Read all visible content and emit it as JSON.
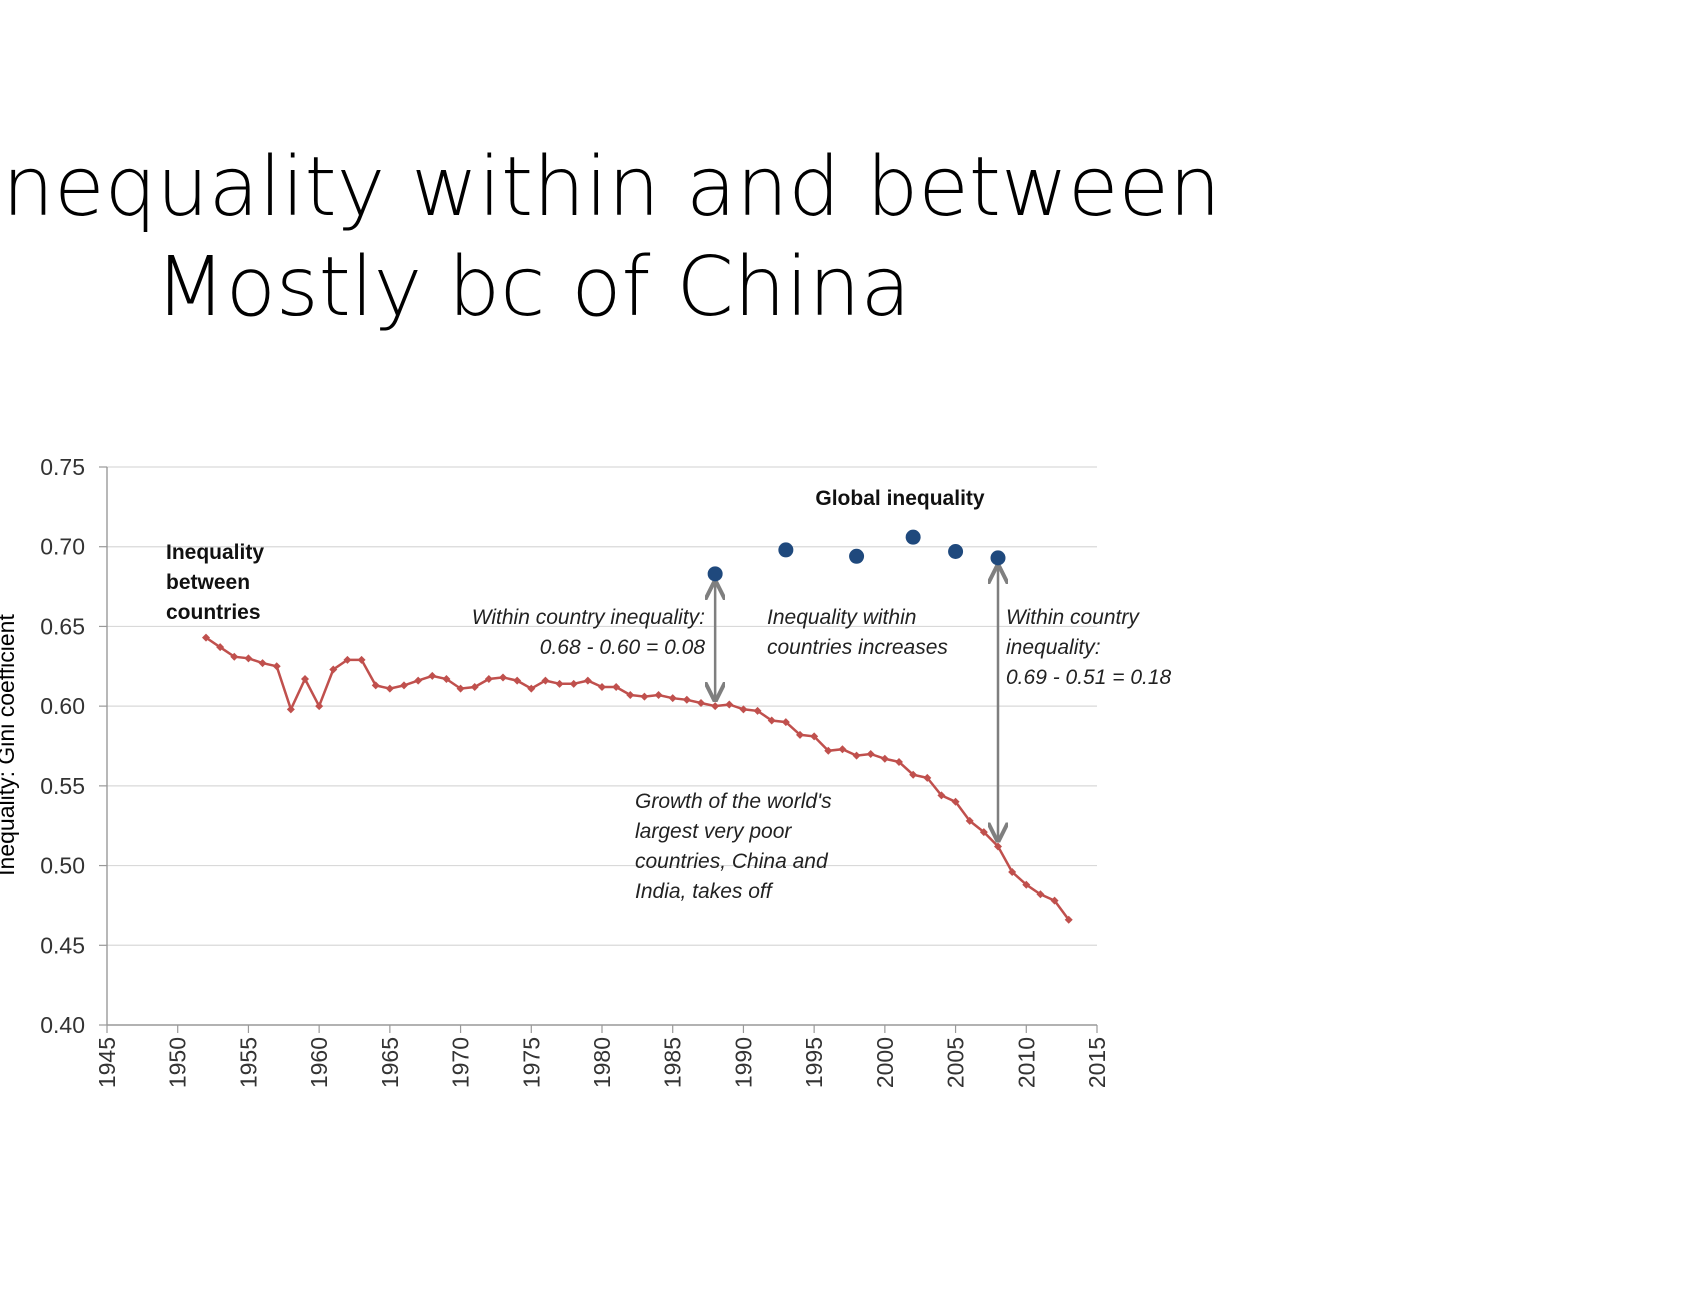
{
  "title": {
    "line1": "Inequality within and between",
    "line2": "Mostly bc of China"
  },
  "chart_data": {
    "type": "line",
    "ylabel": "Inequality: Gini coefficient",
    "xlabel": "",
    "xlim": [
      1945,
      2015
    ],
    "ylim": [
      0.4,
      0.75
    ],
    "x_ticks": [
      "1945",
      "1950",
      "1955",
      "1960",
      "1965",
      "1970",
      "1975",
      "1980",
      "1985",
      "1990",
      "1995",
      "2000",
      "2005",
      "2010",
      "2015"
    ],
    "y_ticks": [
      "0.40",
      "0.45",
      "0.50",
      "0.55",
      "0.60",
      "0.65",
      "0.70",
      "0.75"
    ],
    "grid": true,
    "series": [
      {
        "name": "Inequality between countries",
        "color": "#c0504d",
        "marker": "diamond",
        "x": [
          1952,
          1953,
          1954,
          1955,
          1956,
          1957,
          1958,
          1959,
          1960,
          1961,
          1962,
          1963,
          1964,
          1965,
          1966,
          1967,
          1968,
          1969,
          1970,
          1971,
          1972,
          1973,
          1974,
          1975,
          1976,
          1977,
          1978,
          1979,
          1980,
          1981,
          1982,
          1983,
          1984,
          1985,
          1986,
          1987,
          1988,
          1989,
          1990,
          1991,
          1992,
          1993,
          1994,
          1995,
          1996,
          1997,
          1998,
          1999,
          2000,
          2001,
          2002,
          2003,
          2004,
          2005,
          2006,
          2007,
          2008,
          2009,
          2010,
          2011,
          2012,
          2013
        ],
        "values": [
          0.643,
          0.637,
          0.631,
          0.63,
          0.627,
          0.625,
          0.598,
          0.617,
          0.6,
          0.623,
          0.629,
          0.629,
          0.613,
          0.611,
          0.613,
          0.616,
          0.619,
          0.617,
          0.611,
          0.612,
          0.617,
          0.618,
          0.616,
          0.611,
          0.616,
          0.614,
          0.614,
          0.616,
          0.612,
          0.612,
          0.607,
          0.606,
          0.607,
          0.605,
          0.604,
          0.602,
          0.6,
          0.601,
          0.598,
          0.597,
          0.591,
          0.59,
          0.582,
          0.581,
          0.572,
          0.573,
          0.569,
          0.57,
          0.567,
          0.565,
          0.557,
          0.555,
          0.544,
          0.54,
          0.528,
          0.521,
          0.512,
          0.496,
          0.488,
          0.482,
          0.478,
          0.466
        ]
      },
      {
        "name": "Global inequality",
        "color": "#1f497d",
        "marker": "circle",
        "x": [
          1988,
          1993,
          1998,
          2002,
          2005,
          2008
        ],
        "values": [
          0.683,
          0.698,
          0.694,
          0.706,
          0.697,
          0.693
        ]
      }
    ],
    "arrows": [
      {
        "x": 1988,
        "from": 0.6,
        "to": 0.683
      },
      {
        "x": 2008,
        "from": 0.512,
        "to": 0.693
      }
    ],
    "annotations": {
      "between_label": [
        "Inequality",
        "between",
        "countries"
      ],
      "global_label": "Global inequality",
      "within_1988": [
        "Within country inequality:",
        "0.68 - 0.60 = 0.08"
      ],
      "within_increases": [
        "Inequality within",
        "countries increases"
      ],
      "within_2008": [
        "Within country",
        "inequality:",
        "0.69 - 0.51 = 0.18"
      ],
      "growth": [
        "Growth of the world's",
        "largest very poor",
        "countries, China and",
        "India, takes off"
      ]
    }
  }
}
